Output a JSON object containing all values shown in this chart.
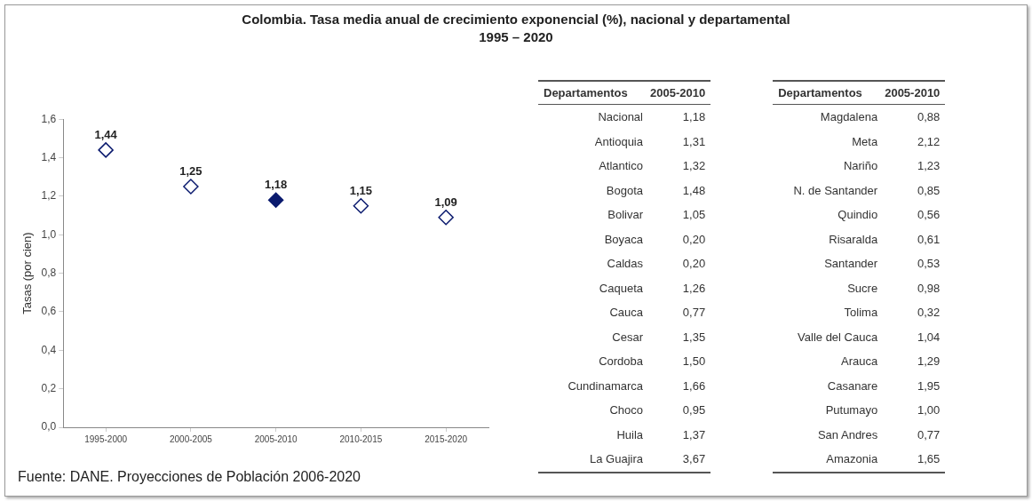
{
  "chart_data": [
    {
      "type": "scatter",
      "title": "Colombia. Tasa media anual de crecimiento exponencial (%), nacional y departamental",
      "subtitle": "1995 – 2020",
      "ylabel": "Tasas (por cien)",
      "categories": [
        "1995-2000",
        "2000-2005",
        "2005-2010",
        "2010-2015",
        "2015-2020"
      ],
      "values": [
        1.44,
        1.25,
        1.18,
        1.15,
        1.09
      ],
      "colors": [
        "#ffffff",
        "#ffffff",
        "#0a1a6e",
        "#ffffff",
        "#ffffff"
      ],
      "ylim": [
        0,
        1.6
      ],
      "yticks": [
        {
          "value": 0,
          "label": "0,0"
        },
        {
          "value": 0.2,
          "label": "0,2"
        },
        {
          "value": 0.4,
          "label": "0,4"
        },
        {
          "value": 0.6,
          "label": "0,6"
        },
        {
          "value": 0.8,
          "label": "0,8"
        },
        {
          "value": 1,
          "label": "1,0"
        },
        {
          "value": 1.2,
          "label": "1,2"
        },
        {
          "value": 1.4,
          "label": "1,4"
        },
        {
          "value": 1.6,
          "label": "1,6"
        }
      ],
      "value_labels": [
        "1,44",
        "1,25",
        "1,18",
        "1,15",
        "1,09"
      ],
      "marker": "diamond",
      "grid": false,
      "legend": false,
      "annotations": [
        "Fuente: DANE. Proyecciones de Población 2006-2020"
      ]
    },
    {
      "type": "other",
      "annotations": [
        "Departamentos",
        "2005-2010"
      ],
      "categories": [
        "Nacional",
        "Antioquia",
        "Atlantico",
        "Bogota",
        "Bolivar",
        "Boyaca",
        "Caldas",
        "Caqueta",
        "Cauca",
        "Cesar",
        "Cordoba",
        "Cundinamarca",
        "Choco",
        "Huila",
        "La Guajira",
        "Magdalena",
        "Meta",
        "Nariño",
        "N. de Santander",
        "Quindio",
        "Risaralda",
        "Santander",
        "Sucre",
        "Tolima",
        "Valle del Cauca",
        "Arauca",
        "Casanare",
        "Putumayo",
        "San Andres",
        "Amazonia"
      ],
      "values": [
        1.18,
        1.31,
        1.32,
        1.48,
        1.05,
        0.2,
        0.2,
        1.26,
        0.77,
        1.35,
        1.5,
        1.66,
        0.95,
        1.37,
        3.67,
        0.88,
        2.12,
        1.23,
        0.85,
        0.56,
        0.61,
        0.53,
        0.98,
        0.32,
        1.04,
        1.29,
        1.95,
        1.0,
        0.77,
        1.65
      ],
      "value_labels": [
        "1,18",
        "1,31",
        "1,32",
        "1,48",
        "1,05",
        "0,20",
        "0,20",
        "1,26",
        "0,77",
        "1,35",
        "1,50",
        "1,66",
        "0,95",
        "1,37",
        "3,67",
        "0,88",
        "2,12",
        "1,23",
        "0,85",
        "0,56",
        "0,61",
        "0,53",
        "0,98",
        "0,32",
        "1,04",
        "1,29",
        "1,95",
        "1,00",
        "0,77",
        "1,65"
      ]
    }
  ]
}
